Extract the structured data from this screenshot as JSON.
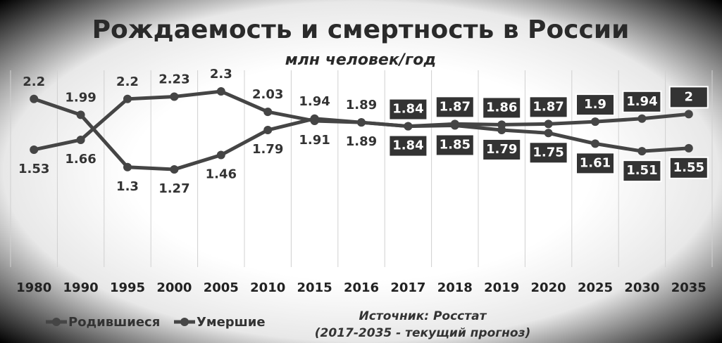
{
  "chart_data": {
    "type": "line",
    "title": "Рождаемость и смертность в России",
    "subtitle": "млн человек/год",
    "annotations": [
      "Источник: Росстат",
      "(2017-2035 - текущий прогноз)"
    ],
    "categories": [
      "1980",
      "1990",
      "1995",
      "2000",
      "2005",
      "2010",
      "2015",
      "2016",
      "2017",
      "2018",
      "2019",
      "2020",
      "2025",
      "2030",
      "2035"
    ],
    "series": [
      {
        "name": "Родившиеся",
        "color": "#454545",
        "values": [
          2.2,
          1.99,
          1.3,
          1.27,
          1.46,
          1.79,
          1.94,
          1.89,
          1.84,
          1.85,
          1.79,
          1.75,
          1.61,
          1.51,
          1.55
        ]
      },
      {
        "name": "Умершие",
        "color": "#454545",
        "values": [
          1.53,
          1.66,
          2.2,
          2.23,
          2.3,
          2.03,
          1.91,
          1.89,
          1.84,
          1.87,
          1.86,
          1.87,
          1.9,
          1.94,
          2
        ]
      }
    ],
    "legend": "bottom-left",
    "grid": true
  }
}
